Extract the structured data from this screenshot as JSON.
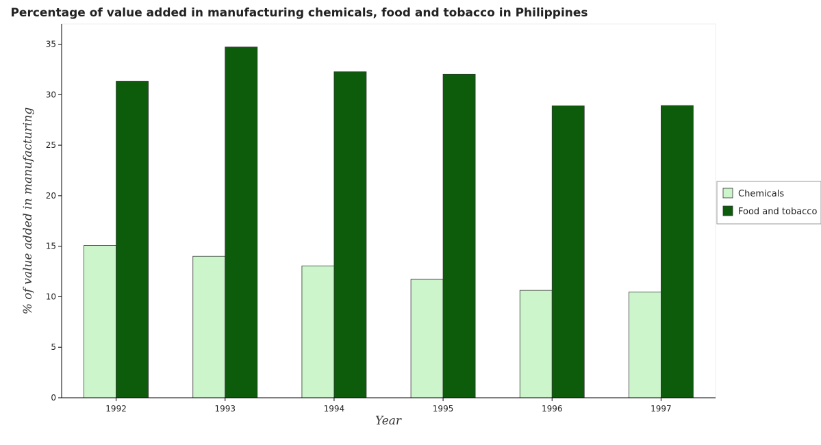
{
  "chart_data": {
    "type": "bar",
    "title": "Percentage of value added in manufacturing chemicals, food and tobacco in Philippines",
    "xlabel": "Year",
    "ylabel": "% of value added in manufacturing",
    "categories": [
      "1992",
      "1993",
      "1994",
      "1995",
      "1996",
      "1997"
    ],
    "series": [
      {
        "name": "Chemicals",
        "color": "#ccf5cc",
        "values": [
          15.08,
          14.01,
          13.05,
          11.72,
          10.63,
          10.46
        ]
      },
      {
        "name": "Food and tobacco",
        "color": "#0c5c0c",
        "values": [
          31.34,
          34.72,
          32.27,
          32.03,
          28.89,
          28.92
        ]
      }
    ],
    "ylim": [
      0,
      37
    ],
    "yticks": [
      0,
      5,
      10,
      15,
      20,
      25,
      30,
      35
    ],
    "grid": false,
    "legend_position": "right"
  }
}
